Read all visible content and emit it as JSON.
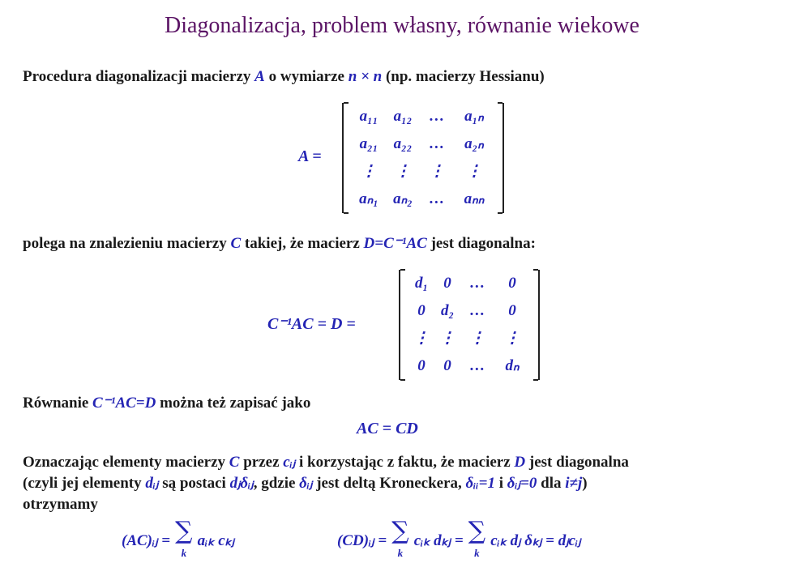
{
  "title": "Diagonalizacja, problem własny, równanie wiekowe",
  "line1": {
    "a": "Procedura diagonalizacji macierzy ",
    "b": "A",
    "c": " o wymiarze ",
    "d": "n × n",
    "e": " (np. macierzy Hessianu)"
  },
  "matrixA": {
    "label": "A =",
    "rows": [
      [
        "a₁₁",
        "a₁₂",
        "…",
        "a₁ₙ"
      ],
      [
        "a₂₁",
        "a₂₂",
        "…",
        "a₂ₙ"
      ],
      [
        "⋮",
        "⋮",
        "⋮",
        "⋮"
      ],
      [
        "aₙ₁",
        "aₙ₂",
        "…",
        "aₙₙ"
      ]
    ]
  },
  "line2": {
    "a": "polega na znalezieniu macierzy ",
    "b": "C",
    "c": " takiej, że macierz ",
    "d": "D=C⁻¹AC",
    "e": " jest diagonalna:"
  },
  "matrixD": {
    "label": "C⁻¹AC = D =",
    "rows": [
      [
        "d₁",
        "0",
        "…",
        "0"
      ],
      [
        "0",
        "d₂",
        "…",
        "0"
      ],
      [
        "⋮",
        "⋮",
        "⋮",
        "⋮"
      ],
      [
        "0",
        "0",
        "…",
        "dₙ"
      ]
    ]
  },
  "line3": {
    "a": "Równanie ",
    "b": "C⁻¹AC=D",
    "c": " można też zapisać jako"
  },
  "eq1": "AC = CD",
  "para": {
    "l1a": "Oznaczając elementy macierzy ",
    "l1b": "C",
    "l1c": " przez ",
    "l1d": "cᵢⱼ",
    "l1e": " i korzystając z faktu, że macierz ",
    "l1f": "D",
    "l1g": " jest diagonalna",
    "l2a": "(czyli jej elementy ",
    "l2b": "dᵢⱼ",
    "l2c": " są postaci ",
    "l2d": "dⱼδᵢⱼ",
    "l2e": ", gdzie ",
    "l2f": "δᵢⱼ",
    "l2g": " jest deltą Kroneckera, ",
    "l2h": "δᵢᵢ=1",
    "l2i": " i ",
    "l2j": "δᵢⱼ=0",
    "l2k": " dla ",
    "l2l": "i≠j",
    "l2m": ")",
    "l3": "otrzymamy"
  },
  "formula1": {
    "lhs": "(AC)ᵢⱼ =",
    "sum": "∑",
    "k": "k",
    "rhs": "aᵢₖ cₖⱼ"
  },
  "formula2": {
    "lhs": "(CD)ᵢⱼ =",
    "sum1": "∑",
    "k1": "k",
    "mid": "cᵢₖ dₖⱼ =",
    "sum2": "∑",
    "k2": "k",
    "rhs": "cᵢₖ dⱼ δₖⱼ = dⱼcᵢⱼ"
  },
  "colors": {
    "title": "#5b1465",
    "math": "#2424b4"
  }
}
